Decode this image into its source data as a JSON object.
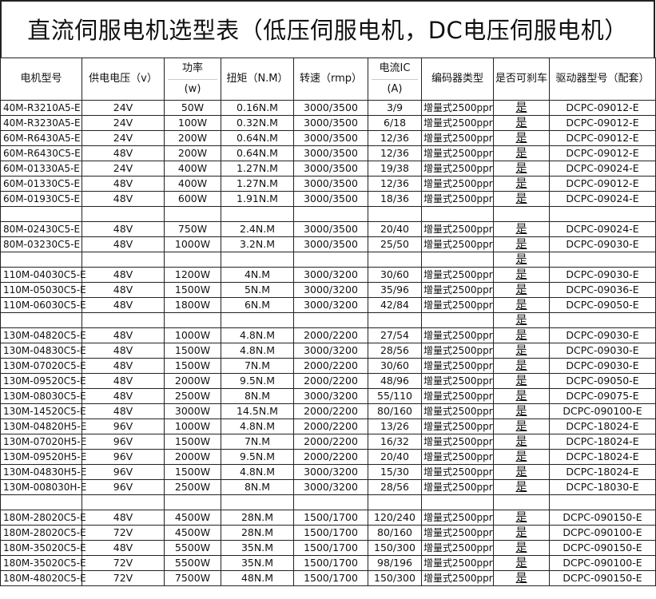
{
  "title": "直流伺服电机选型表（低压伺服电机，DC电压伺服电机）",
  "headers": {
    "model": "电机型号",
    "voltage": "供电电压（v）",
    "power_top": "功率",
    "power_bottom": "(w)",
    "torque": "扭矩（N.M）",
    "speed": "转速（rmp）",
    "current_top": "电流IC",
    "current_bottom": "(A)",
    "encoder": "编码器类型",
    "brake": "是否可刹车",
    "driver": "驱动器型号（配套）"
  },
  "rows": [
    [
      "40M-R3210A5-E",
      "24V",
      "50W",
      "0.16N.M",
      "3000/3500",
      "3/9",
      "增量式2500ppr",
      "是",
      "DCPC-09012-E"
    ],
    [
      "40M-R3230A5-E",
      "24V",
      "100W",
      "0.32N.M",
      "3000/3500",
      "6/18",
      "增量式2500ppr",
      "是",
      "DCPC-09012-E"
    ],
    [
      "60M-R6430A5-E",
      "24V",
      "200W",
      "0.64N.M",
      "3000/3500",
      "12/36",
      "增量式2500ppr",
      "是",
      "DCPC-09012-E"
    ],
    [
      "60M-R6430C5-E",
      "48V",
      "200W",
      "0.64N.M",
      "3000/3500",
      "12/36",
      "增量式2500ppr",
      "是",
      "DCPC-09012-E"
    ],
    [
      "60M-01330A5-E",
      "24V",
      "400W",
      "1.27N.M",
      "3000/3500",
      "19/38",
      "增量式2500ppr",
      "是",
      "DCPC-09024-E"
    ],
    [
      "60M-01330C5-E",
      "48V",
      "400W",
      "1.27N.M",
      "3000/3500",
      "12/36",
      "增量式2500ppr",
      "是",
      "DCPC-09012-E"
    ],
    [
      "60M-01930C5-E",
      "48V",
      "600W",
      "1.91N.M",
      "3000/3500",
      "18/36",
      "增量式2500ppr",
      "是",
      "DCPC-09024-E"
    ],
    [
      "",
      "",
      "",
      "",
      "",
      "",
      "",
      "",
      ""
    ],
    [
      "80M-02430C5-E",
      "48V",
      "750W",
      "2.4N.M",
      "3000/3500",
      "20/40",
      "增量式2500ppr",
      "是",
      "DCPC-09024-E"
    ],
    [
      "80M-03230C5-E",
      "48V",
      "1000W",
      "3.2N.M",
      "3000/3500",
      "25/50",
      "增量式2500ppr",
      "是",
      "DCPC-09030-E"
    ],
    [
      "",
      "",
      "",
      "",
      "",
      "",
      "",
      "是",
      ""
    ],
    [
      "110M-04030C5-E",
      "48V",
      "1200W",
      "4N.M",
      "3000/3200",
      "30/60",
      "增量式2500ppr",
      "是",
      "DCPC-09030-E"
    ],
    [
      "110M-05030C5-E",
      "48V",
      "1500W",
      "5N.M",
      "3000/3200",
      "35/96",
      "增量式2500ppr",
      "是",
      "DCPC-09036-E"
    ],
    [
      "110M-06030C5-E",
      "48V",
      "1800W",
      "6N.M",
      "3000/3200",
      "42/84",
      "增量式2500ppr",
      "是",
      "DCPC-09050-E"
    ],
    [
      "",
      "",
      "",
      "",
      "",
      "",
      "",
      "是",
      ""
    ],
    [
      "130M-04820C5-E",
      "48V",
      "1000W",
      "4.8N.M",
      "2000/2200",
      "27/54",
      "增量式2500ppr",
      "是",
      "DCPC-09030-E"
    ],
    [
      "130M-04830C5-E",
      "48V",
      "1500W",
      "4.8N.M",
      "3000/3200",
      "28/56",
      "增量式2500ppr",
      "是",
      "DCPC-09030-E"
    ],
    [
      "130M-07020C5-E",
      "48V",
      "1500W",
      "7N.M",
      "2000/2200",
      "30/60",
      "增量式2500ppr",
      "是",
      "DCPC-09030-E"
    ],
    [
      "130M-09520C5-E",
      "48V",
      "2000W",
      "9.5N.M",
      "2000/2200",
      "48/96",
      "增量式2500ppr",
      "是",
      "DCPC-09050-E"
    ],
    [
      "130M-08030C5-E",
      "48V",
      "2500W",
      "8N.M",
      "3000/3200",
      "55/110",
      "增量式2500ppr",
      "是",
      "DCPC-09075-E"
    ],
    [
      "130M-14520C5-E",
      "48V",
      "3000W",
      "14.5N.M",
      "2000/2200",
      "80/160",
      "增量式2500ppr",
      "是",
      "DCPC-090100-E"
    ],
    [
      "130M-04820H5-E",
      "96V",
      "1000W",
      "4.8N.M",
      "2000/2200",
      "13/26",
      "增量式2500ppr",
      "是",
      "DCPC-18024-E"
    ],
    [
      "130M-07020H5-E",
      "96V",
      "1500W",
      "7N.M",
      "2000/2200",
      "16/32",
      "增量式2500ppr",
      "是",
      "DCPC-18024-E"
    ],
    [
      "130M-09520H5-E",
      "96V",
      "2000W",
      "9.5N.M",
      "2000/2200",
      "20/40",
      "增量式2500ppr",
      "是",
      "DCPC-18024-E"
    ],
    [
      "130M-04830H5-E",
      "96V",
      "1500W",
      "4.8N.M",
      "3000/3200",
      "15/30",
      "增量式2500ppr",
      "是",
      "DCPC-18024-E"
    ],
    [
      "130M-008030H-E",
      "96V",
      "2500W",
      "8N.M",
      "3000/3200",
      "28/56",
      "增量式2500ppr",
      "是",
      "DCPC-18030-E"
    ],
    [
      "",
      "",
      "",
      "",
      "",
      "",
      "",
      "",
      ""
    ],
    [
      "180M-28020C5-E",
      "48V",
      "4500W",
      "28N.M",
      "1500/1700",
      "120/240",
      "增量式2500ppr",
      "是",
      "DCPC-090150-E"
    ],
    [
      "180M-28020C5-E",
      "72V",
      "4500W",
      "28N.M",
      "1500/1700",
      "80/160",
      "增量式2500ppr",
      "是",
      "DCPC-090100-E"
    ],
    [
      "180M-35020C5-E",
      "48V",
      "5500W",
      "35N.M",
      "1500/1700",
      "150/300",
      "增量式2500ppr",
      "是",
      "DCPC-090150-E"
    ],
    [
      "180M-35020C5-E",
      "72V",
      "5500W",
      "35N.M",
      "1500/1700",
      "98/196",
      "增量式2500ppr",
      "是",
      "DCPC-090100-E"
    ],
    [
      "180M-48020C5-E",
      "72V",
      "7500W",
      "48N.M",
      "1500/1700",
      "150/300",
      "增量式2500ppr",
      "是",
      "DCPC-090150-E"
    ]
  ]
}
